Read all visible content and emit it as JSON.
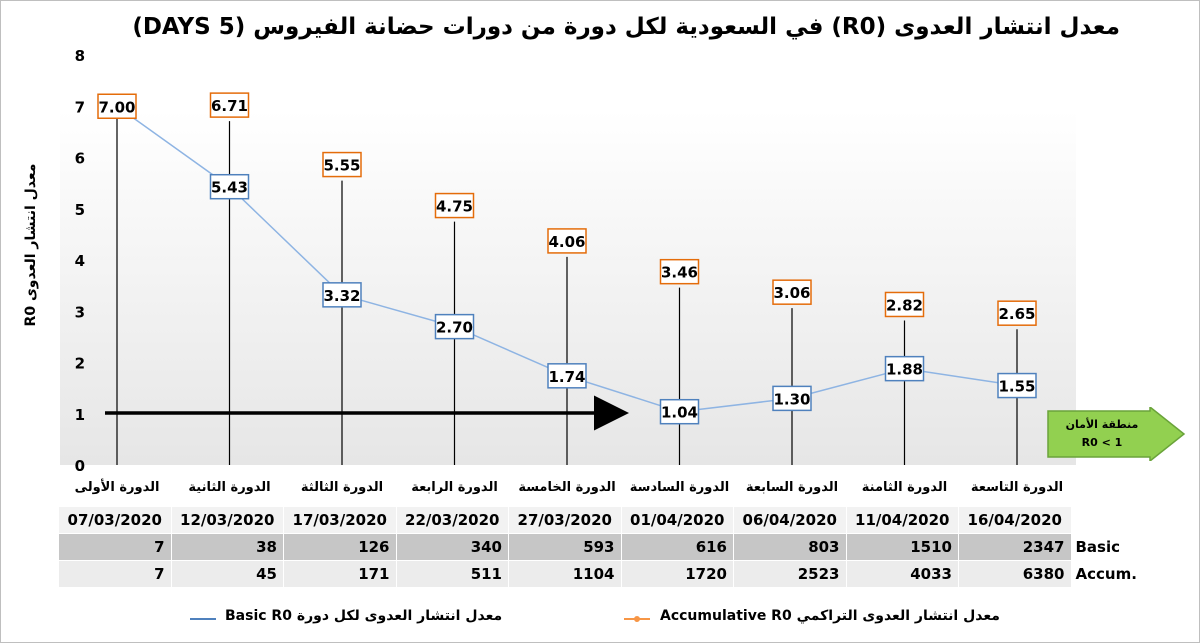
{
  "title": "معدل انتشار العدوى (R0) في السعودية لكل دورة من دورات حضانة الفيروس (5 DAYS)",
  "chart_data": {
    "type": "line",
    "ylabel_ar": "معدل انتشار العدوى",
    "ylabel_en": "R0",
    "ylim": [
      0,
      8
    ],
    "yticks": [
      0,
      1,
      2,
      3,
      4,
      5,
      6,
      7,
      8
    ],
    "categories": [
      "الدورة الأولى",
      "الدورة الثانية",
      "الدورة الثالثة",
      "الدورة الرابعة",
      "الدورة الخامسة",
      "الدورة السادسة",
      "الدورة السابعة",
      "الدورة الثامنة",
      "الدورة التاسعة"
    ],
    "series": [
      {
        "name": "معدل انتشار العدوى لكل دورة Basic R0",
        "values": [
          7.0,
          5.43,
          3.32,
          2.7,
          1.74,
          1.04,
          1.3,
          1.88,
          1.55
        ],
        "color": "#8eb4e3",
        "label_border": "#4f81bd"
      },
      {
        "name": "معدل انتشار العدوى التراكمي Accumulative R0",
        "values": [
          7.0,
          6.71,
          5.55,
          4.75,
          4.06,
          3.46,
          3.06,
          2.82,
          2.65
        ],
        "color": "#f79646",
        "label_border": "#e46c0a"
      }
    ],
    "labels_basic": [
      "7.00",
      "5.43",
      "3.32",
      "2.70",
      "1.74",
      "1.04",
      "1.30",
      "1.88",
      "1.55"
    ],
    "labels_accum": [
      "",
      "6.71",
      "5.55",
      "4.75",
      "4.06",
      "3.46",
      "3.06",
      "2.82",
      "2.65"
    ],
    "reference_value": 1,
    "grid": false
  },
  "safe_zone": {
    "line1": "منطقة الأمان",
    "line2": "R0  < 1",
    "color": "#92d050"
  },
  "table": {
    "dates": [
      "07/03/2020",
      "12/03/2020",
      "17/03/2020",
      "22/03/2020",
      "27/03/2020",
      "01/04/2020",
      "06/04/2020",
      "11/04/2020",
      "16/04/2020"
    ],
    "basic": [
      "7",
      "38",
      "126",
      "340",
      "593",
      "616",
      "803",
      "1510",
      "2347"
    ],
    "accum": [
      "7",
      "45",
      "171",
      "511",
      "1104",
      "1720",
      "2523",
      "4033",
      "6380"
    ],
    "basic_label": "Basic",
    "accum_label": "Accum."
  },
  "legend": {
    "basic": "معدل انتشار العدوى لكل دورة Basic R0",
    "accum": "معدل انتشار العدوى التراكمي Accumulative R0"
  }
}
